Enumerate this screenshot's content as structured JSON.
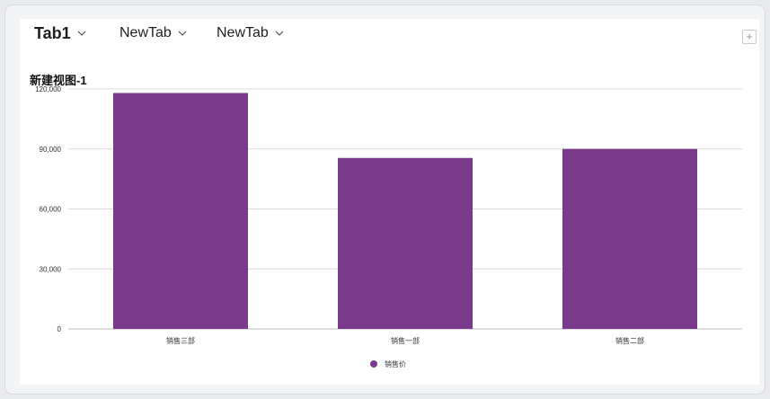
{
  "tabs": [
    {
      "label": "Tab1",
      "active": true
    },
    {
      "label": "NewTab",
      "active": false
    },
    {
      "label": "NewTab",
      "active": false
    }
  ],
  "add_tab_icon": "plus-icon",
  "chart_data": {
    "type": "bar",
    "title": "新建视图-1",
    "categories": [
      "销售三部",
      "销售一部",
      "销售二部"
    ],
    "series": [
      {
        "name": "销售价",
        "values": [
          118000,
          85500,
          90000
        ],
        "color": "#7a3a8b"
      }
    ],
    "yticks": [
      "0",
      "30,000",
      "60,000",
      "90,000",
      "120,000"
    ],
    "ylim": [
      0,
      120000
    ],
    "grid": true,
    "legend_position": "bottom-center"
  }
}
